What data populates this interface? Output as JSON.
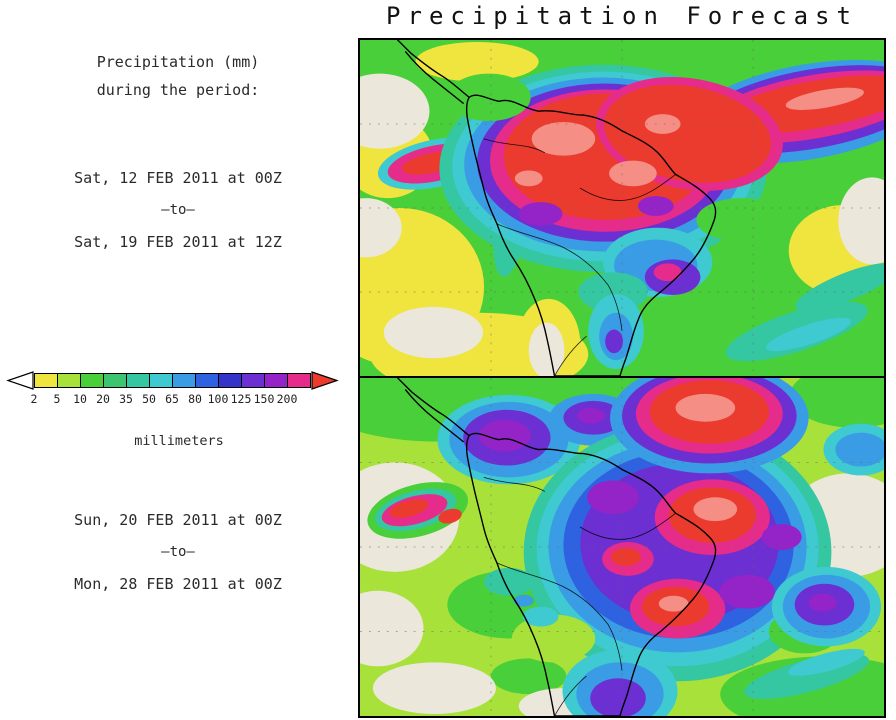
{
  "title": "Precipitation Forecast",
  "sidebar": {
    "heading_line1": "Precipitation (mm)",
    "heading_line2": "during the period:",
    "period1": {
      "start": "Sat, 12 FEB 2011 at 00Z",
      "separator": "–to–",
      "end": "Sat, 19 FEB 2011 at 12Z"
    },
    "period2": {
      "start": "Sun, 20 FEB 2011 at 00Z",
      "separator": "–to–",
      "end": "Mon, 28 FEB 2011 at 00Z"
    }
  },
  "legend": {
    "unit_label": "millimeters",
    "ticks": [
      "2",
      "5",
      "10",
      "20",
      "35",
      "50",
      "65",
      "80",
      "100",
      "125",
      "150",
      "200"
    ],
    "cell_color_keys": [
      "yellow",
      "yellowgreen",
      "green",
      "tealgreen",
      "teal",
      "cyan",
      "lightblue",
      "blue",
      "darkblue",
      "purple",
      "violet",
      "magenta"
    ],
    "arrow_left_key": "white",
    "arrow_right_key": "red"
  },
  "palette": {
    "white": "#ffffff",
    "dry": "#ece7db",
    "yellow": "#f0e43e",
    "yellowgreen": "#a9e13b",
    "green": "#49cf39",
    "tealgreen": "#3dc46e",
    "teal": "#35c6a2",
    "cyan": "#3fc9d1",
    "lightblue": "#3b9ce6",
    "blue": "#2f62e0",
    "darkblue": "#3434c8",
    "purple": "#6c2fd2",
    "violet": "#9423c8",
    "magenta": "#e52c8a",
    "red": "#ea3b2e",
    "salmon": "#f58f86"
  }
}
